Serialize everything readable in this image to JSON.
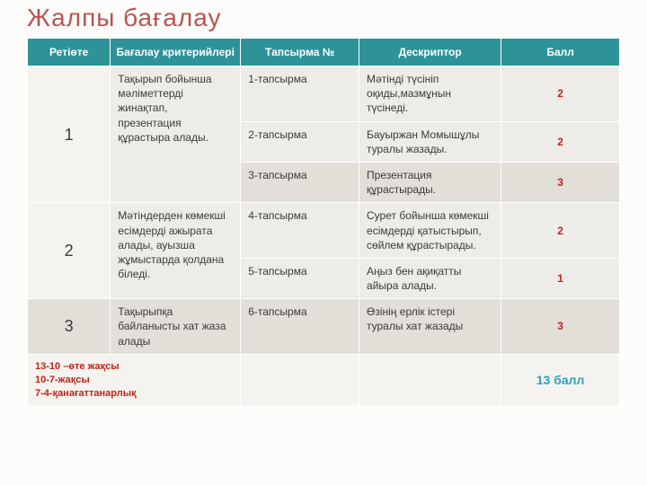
{
  "title": "Жалпы  бағалау",
  "headers": {
    "c1": "Ретіөте",
    "c2": "Бағалау критерийлері",
    "c3": "Тапсырма №",
    "c4": "Дескриптор",
    "c5": "Балл"
  },
  "rows": {
    "g1": {
      "num": "1",
      "criteria": "Тақырып бойынша мәліметтерді жинақтап, презентация құрастыра алады.",
      "r1": {
        "task": "1-тапсырма",
        "desc": "Мәтінді түсініп оқиды,мазмұнын түсінеді.",
        "score": "2"
      },
      "r2": {
        "task": "2-тапсырма",
        "desc": "Бауыржан Момышұлы туралы жазады.",
        "score": "2"
      },
      "r3": {
        "task": "3-тапсырма",
        "desc": "Презентация құрастырады.",
        "score": "3"
      }
    },
    "g2": {
      "num": "2",
      "criteria": "Мәтіндерден көмекші есімдерді ажырата алады, ауызша жұмыстарда қолдана біледі.",
      "r4": {
        "task": "4-тапсырма",
        "desc": "Сурет бойынша көмекші есімдерді қатыстырып, сөйлем құрастырады.",
        "score": "2"
      },
      "r5": {
        "task": "5-тапсырма",
        "desc": "Аңыз бен ақиқатты айыра алады.",
        "score": "1"
      }
    },
    "g3": {
      "num": "3",
      "criteria": "Тақырыпқа байланысты хат жаза алады",
      "r6": {
        "task": "6-тапсырма",
        "desc": "Өзінің ерлік істері туралы хат жазады",
        "score": "3"
      }
    }
  },
  "legend": {
    "l1": "13-10 –өте жақсы",
    "l2": "10-7-жақсы",
    "l3": "7-4-қанағаттанарлық"
  },
  "total": "13 балл"
}
